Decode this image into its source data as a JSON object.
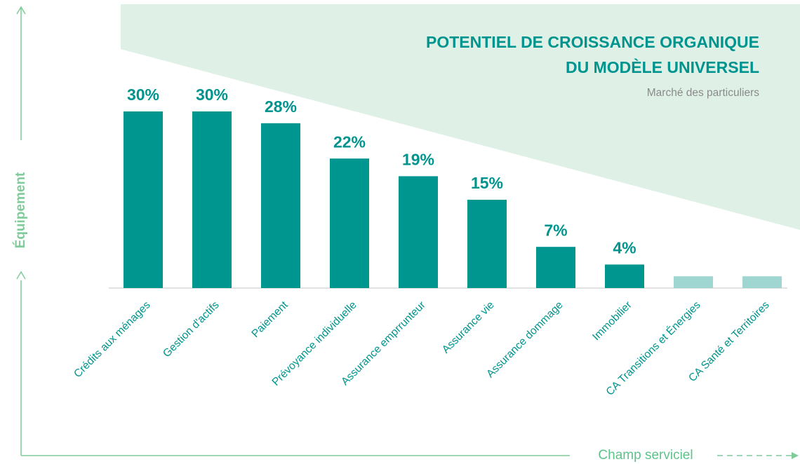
{
  "chart_data": {
    "type": "bar",
    "title": [
      "POTENTIEL DE CROISSANCE ORGANIQUE",
      "DU MODÈLE UNIVERSEL"
    ],
    "subtitle": "Marché des particuliers",
    "y_axis_label": "Équipement",
    "x_axis_label": "Champ serviciel",
    "categories": [
      "Crédits aux ménages",
      "Gestion d'actifs",
      "Paiement",
      "Prévoyance individuelle",
      "Assurance emprrunteur",
      "Assurance vie",
      "Assurance dommage",
      "Immobilier",
      "CA Transitions et Énergies",
      "CA Santé et Territoires"
    ],
    "values": [
      30,
      30,
      28,
      22,
      19,
      15,
      7,
      4,
      2,
      2
    ],
    "value_labels": [
      "30%",
      "30%",
      "28%",
      "22%",
      "19%",
      "15%",
      "7%",
      "4%",
      null,
      null
    ],
    "colors": [
      "#009690",
      "#009690",
      "#009690",
      "#009690",
      "#009690",
      "#009690",
      "#009690",
      "#009690",
      "#9fd6d1",
      "#9fd6d1"
    ]
  }
}
